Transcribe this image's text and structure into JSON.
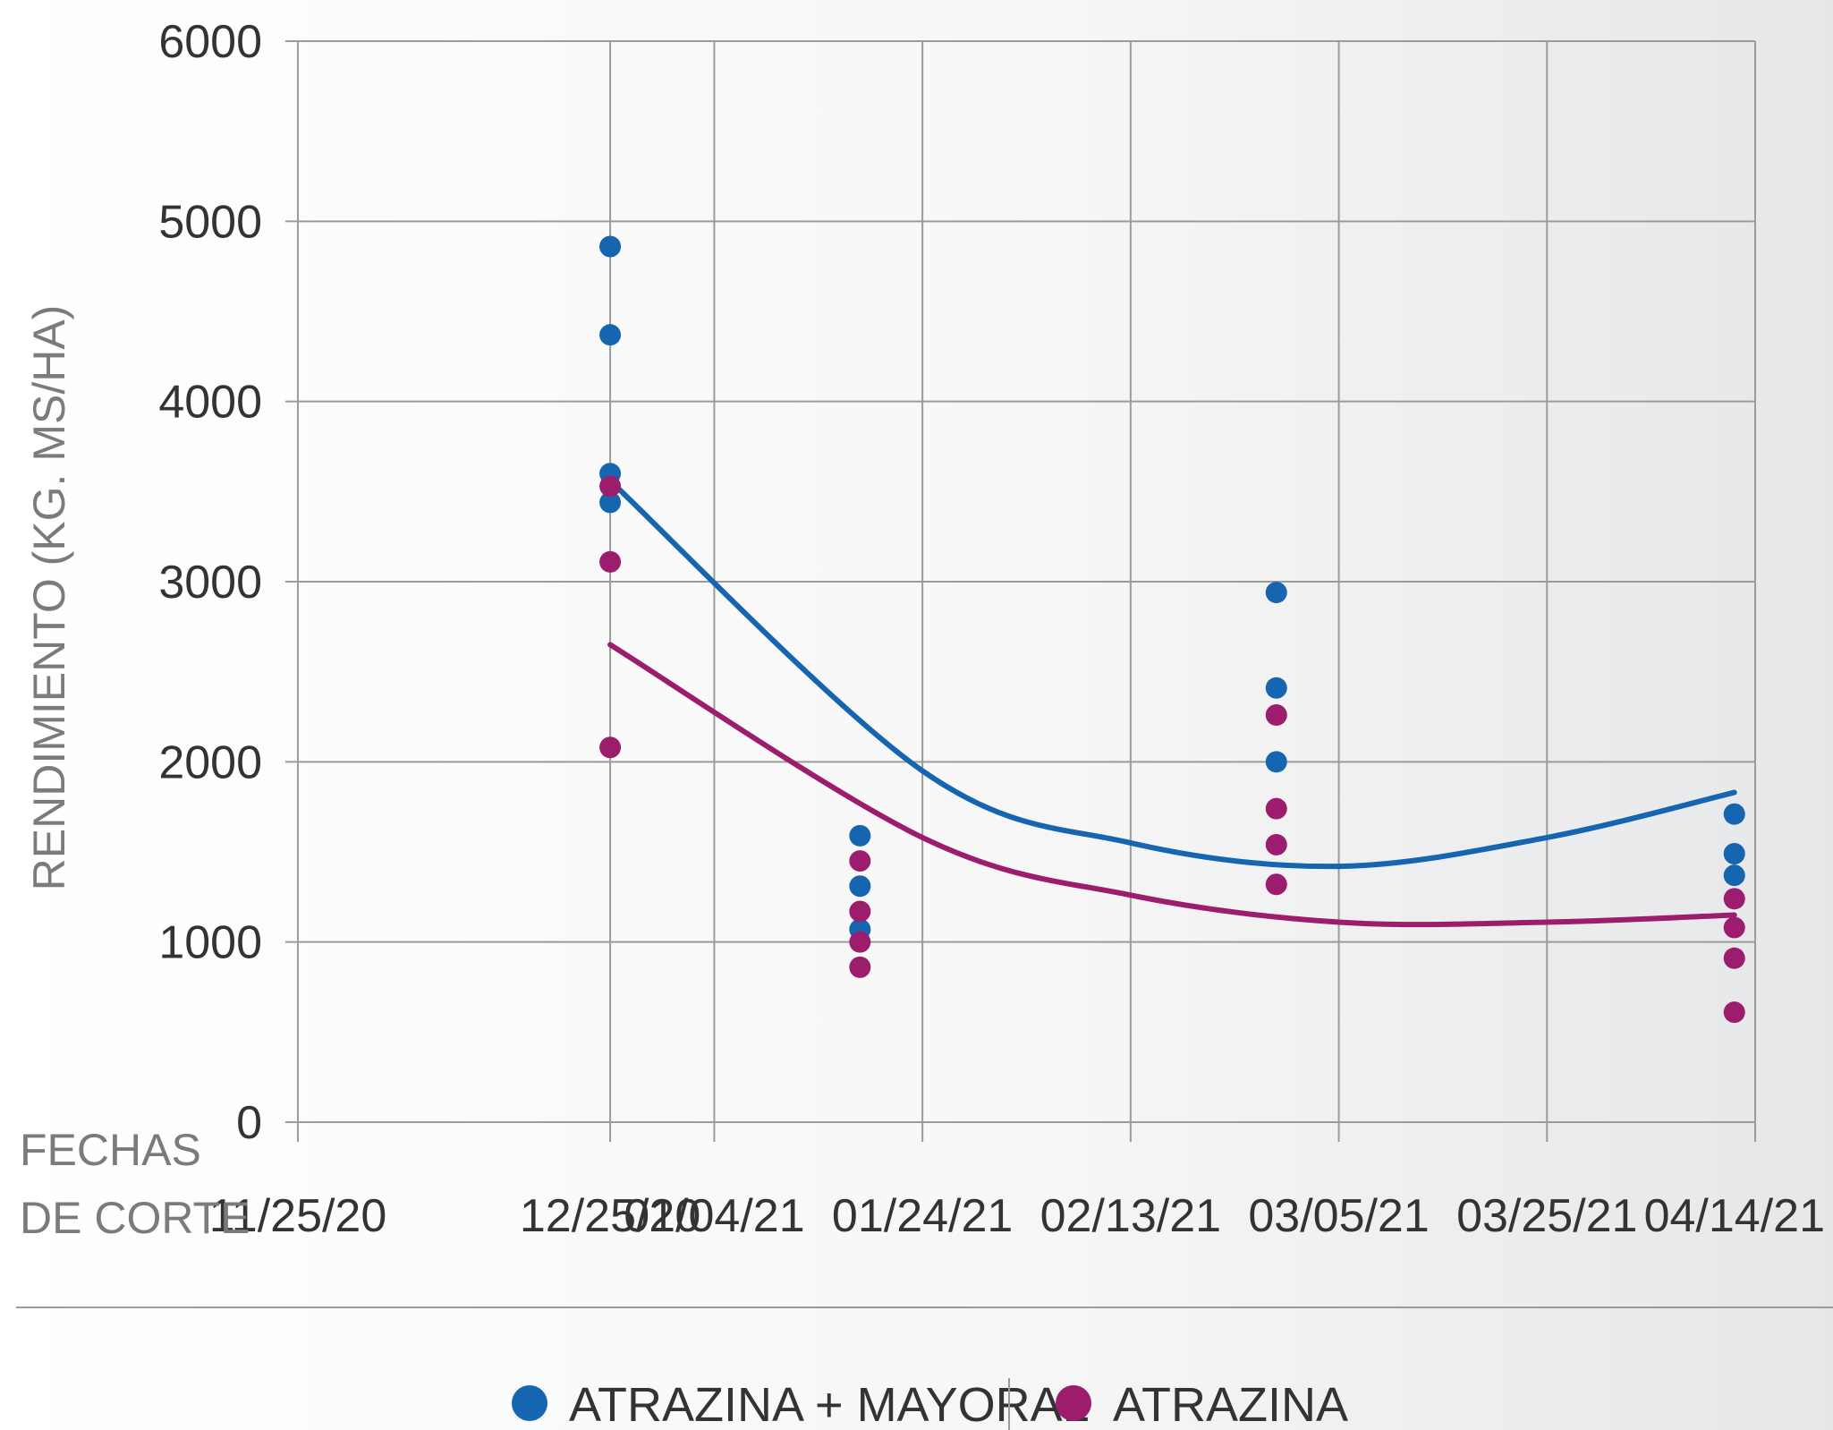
{
  "chart_data": {
    "type": "scatter",
    "ylabel": "RENDIMIENTO (KG. MS/HA)",
    "xlabel_lines": [
      "FECHAS",
      "DE CORTE"
    ],
    "ylim": [
      0,
      6000
    ],
    "yticks": [
      "0",
      "1000",
      "2000",
      "3000",
      "4000",
      "5000",
      "6000"
    ],
    "xlim": [
      "11/25/20",
      "04/14/21"
    ],
    "xticks": [
      "11/25/20",
      "12/25/20",
      "01/04/21",
      "01/24/21",
      "02/13/21",
      "03/05/21",
      "03/25/21",
      "04/14/21"
    ],
    "grid": true,
    "legend_position": "bottom",
    "series": [
      {
        "name": "ATRAZINA + MAYORAL",
        "color": "#1565b0",
        "points": [
          {
            "x": "12/25/20",
            "y": 4860
          },
          {
            "x": "12/25/20",
            "y": 4370
          },
          {
            "x": "12/25/20",
            "y": 3600
          },
          {
            "x": "12/25/20",
            "y": 3440
          },
          {
            "x": "01/18/21",
            "y": 1590
          },
          {
            "x": "01/18/21",
            "y": 1310
          },
          {
            "x": "01/18/21",
            "y": 1070
          },
          {
            "x": "02/27/21",
            "y": 2940
          },
          {
            "x": "02/27/21",
            "y": 2410
          },
          {
            "x": "02/27/21",
            "y": 2000
          },
          {
            "x": "04/12/21",
            "y": 1710
          },
          {
            "x": "04/12/21",
            "y": 1490
          },
          {
            "x": "04/12/21",
            "y": 1370
          }
        ],
        "trend": [
          {
            "x": "12/25/20",
            "y": 3560
          },
          {
            "x": "01/24/21",
            "y": 1950
          },
          {
            "x": "02/13/21",
            "y": 1550
          },
          {
            "x": "03/05/21",
            "y": 1420
          },
          {
            "x": "03/25/21",
            "y": 1580
          },
          {
            "x": "04/12/21",
            "y": 1830
          }
        ]
      },
      {
        "name": "ATRAZINA",
        "color": "#9c1c6e",
        "points": [
          {
            "x": "12/25/20",
            "y": 3530
          },
          {
            "x": "12/25/20",
            "y": 3110
          },
          {
            "x": "12/25/20",
            "y": 2080
          },
          {
            "x": "01/18/21",
            "y": 1450
          },
          {
            "x": "01/18/21",
            "y": 1170
          },
          {
            "x": "01/18/21",
            "y": 1000
          },
          {
            "x": "01/18/21",
            "y": 860
          },
          {
            "x": "02/27/21",
            "y": 2260
          },
          {
            "x": "02/27/21",
            "y": 1740
          },
          {
            "x": "02/27/21",
            "y": 1540
          },
          {
            "x": "02/27/21",
            "y": 1320
          },
          {
            "x": "04/12/21",
            "y": 1240
          },
          {
            "x": "04/12/21",
            "y": 1080
          },
          {
            "x": "04/12/21",
            "y": 910
          },
          {
            "x": "04/12/21",
            "y": 610
          }
        ],
        "trend": [
          {
            "x": "12/25/20",
            "y": 2650
          },
          {
            "x": "01/24/21",
            "y": 1580
          },
          {
            "x": "02/13/21",
            "y": 1260
          },
          {
            "x": "03/05/21",
            "y": 1110
          },
          {
            "x": "03/25/21",
            "y": 1110
          },
          {
            "x": "04/12/21",
            "y": 1150
          }
        ]
      }
    ]
  }
}
